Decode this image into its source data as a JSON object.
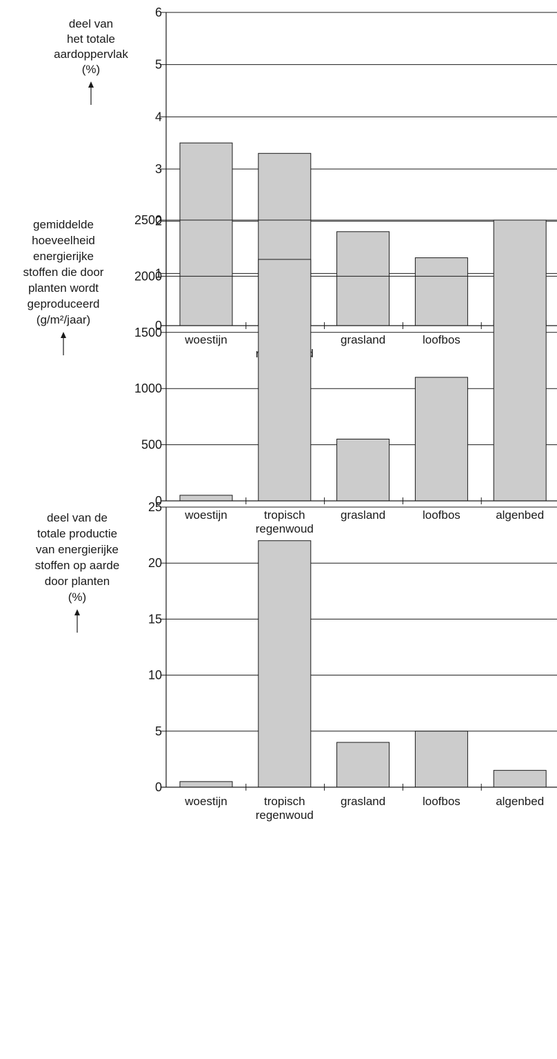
{
  "chart_data": [
    {
      "type": "bar",
      "ylabel_lines": [
        "deel van",
        "het totale",
        "aardoppervlak",
        "(%)"
      ],
      "categories": [
        [
          "woestijn"
        ],
        [
          "tropisch",
          "regenwoud"
        ],
        [
          "grasland"
        ],
        [
          "loofbos"
        ],
        [
          "algenbed"
        ]
      ],
      "values": [
        3.5,
        3.3,
        1.8,
        1.3,
        0.1
      ],
      "ylim": [
        0,
        6
      ],
      "yticks": [
        0,
        1,
        2,
        3,
        4,
        5,
        6
      ],
      "grid": true,
      "bar_color": "#cccccc"
    },
    {
      "type": "bar",
      "ylabel_lines": [
        "gemiddelde",
        "hoeveelheid",
        "energierijke",
        "stoffen die door",
        "planten wordt",
        "geproduceerd",
        "(g/m²/jaar)"
      ],
      "categories": [
        [
          "woestijn"
        ],
        [
          "tropisch",
          "regenwoud"
        ],
        [
          "grasland"
        ],
        [
          "loofbos"
        ],
        [
          "algenbed"
        ]
      ],
      "values": [
        50,
        2150,
        550,
        1100,
        2500
      ],
      "ylim": [
        0,
        2500
      ],
      "yticks": [
        0,
        500,
        1000,
        1500,
        2000,
        2500
      ],
      "grid": true,
      "bar_color": "#cccccc"
    },
    {
      "type": "bar",
      "ylabel_lines": [
        "deel van de",
        "totale productie",
        "van energierijke",
        "stoffen op aarde",
        "door planten",
        "(%)"
      ],
      "categories": [
        [
          "woestijn"
        ],
        [
          "tropisch",
          "regenwoud"
        ],
        [
          "grasland"
        ],
        [
          "loofbos"
        ],
        [
          "algenbed"
        ]
      ],
      "values": [
        0.5,
        22,
        4,
        5,
        1.5
      ],
      "ylim": [
        0,
        25
      ],
      "yticks": [
        0,
        5,
        10,
        15,
        20,
        25
      ],
      "grid": true,
      "bar_color": "#cccccc"
    }
  ]
}
